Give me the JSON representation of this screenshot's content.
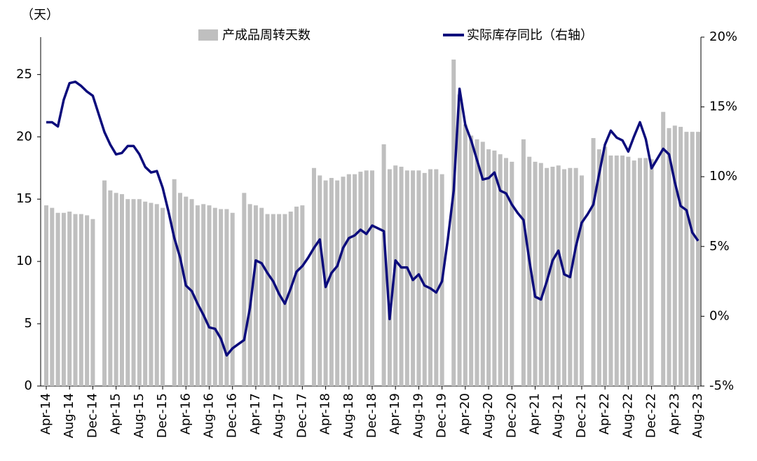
{
  "chart_data": {
    "type": "bar-line",
    "y_axis_label": "（天）",
    "categories": [
      "Apr-14",
      null,
      null,
      null,
      "Aug-14",
      null,
      null,
      null,
      "Dec-14",
      null,
      null,
      null,
      "Apr-15",
      null,
      null,
      null,
      "Aug-15",
      null,
      null,
      null,
      "Dec-15",
      null,
      null,
      null,
      "Apr-16",
      null,
      null,
      null,
      "Aug-16",
      null,
      null,
      null,
      "Dec-16",
      null,
      null,
      null,
      "Apr-17",
      null,
      null,
      null,
      "Aug-17",
      null,
      null,
      null,
      "Dec-17",
      null,
      null,
      null,
      "Apr-18",
      null,
      null,
      null,
      "Aug-18",
      null,
      null,
      null,
      "Dec-18",
      null,
      null,
      null,
      "Apr-19",
      null,
      null,
      null,
      "Aug-19",
      null,
      null,
      null,
      "Dec-19",
      null,
      null,
      null,
      "Apr-20",
      null,
      null,
      null,
      "Aug-20",
      null,
      null,
      null,
      "Dec-20",
      null,
      null,
      null,
      "Apr-21",
      null,
      null,
      null,
      "Aug-21",
      null,
      null,
      null,
      "Dec-21",
      null,
      null,
      null,
      "Apr-22",
      null,
      null,
      null,
      "Aug-22",
      null,
      null,
      null,
      "Dec-22",
      null,
      null,
      null,
      "Apr-23",
      null,
      null,
      null,
      "Aug-23"
    ],
    "series": [
      {
        "name": "产成品周转天数",
        "type": "bar",
        "color": "#bfbfbf",
        "values": [
          14.5,
          14.3,
          13.9,
          13.9,
          14.0,
          13.8,
          13.8,
          13.7,
          13.4,
          null,
          16.5,
          15.7,
          15.5,
          15.4,
          15.0,
          15.0,
          15.0,
          14.8,
          14.7,
          14.6,
          14.3,
          null,
          16.6,
          15.5,
          15.2,
          15.0,
          14.5,
          14.6,
          14.5,
          14.3,
          14.2,
          14.2,
          13.9,
          null,
          15.5,
          14.6,
          14.5,
          14.3,
          13.8,
          13.8,
          13.8,
          13.8,
          14.0,
          14.4,
          14.5,
          null,
          17.5,
          16.9,
          16.5,
          16.7,
          16.5,
          16.8,
          17.0,
          17.0,
          17.2,
          17.3,
          17.3,
          null,
          19.4,
          17.4,
          17.7,
          17.6,
          17.3,
          17.3,
          17.3,
          17.1,
          17.4,
          17.4,
          17.0,
          null,
          26.2,
          23.4,
          21.0,
          20.1,
          19.8,
          19.6,
          19.0,
          18.9,
          18.6,
          18.3,
          18.0,
          null,
          19.8,
          18.4,
          18.0,
          17.9,
          17.5,
          17.6,
          17.7,
          17.4,
          17.5,
          17.5,
          16.9,
          null,
          19.9,
          19.0,
          19.2,
          18.5,
          18.5,
          18.5,
          18.4,
          18.1,
          18.3,
          18.3,
          18.2,
          null,
          22.0,
          20.7,
          20.9,
          20.8,
          20.4,
          20.4,
          20.4
        ]
      },
      {
        "name": "实际库存同比（右轴）",
        "type": "line",
        "axis": "y2",
        "color": "#0c0c7c",
        "values": [
          13.9,
          13.9,
          13.6,
          15.5,
          16.7,
          16.8,
          16.5,
          16.1,
          15.8,
          14.5,
          13.2,
          12.3,
          11.6,
          11.7,
          12.2,
          12.2,
          11.6,
          10.7,
          10.3,
          10.4,
          9.2,
          7.5,
          5.6,
          4.2,
          2.2,
          1.8,
          0.9,
          0.1,
          -0.8,
          -0.9,
          -1.6,
          -2.8,
          -2.3,
          -2.0,
          -1.7,
          0.6,
          4.0,
          3.8,
          3.1,
          2.5,
          1.6,
          0.9,
          2.0,
          3.2,
          3.6,
          4.2,
          4.9,
          5.5,
          2.1,
          3.1,
          3.6,
          4.9,
          5.6,
          5.8,
          6.2,
          5.9,
          6.5,
          6.3,
          6.1,
          -0.2,
          4.0,
          3.5,
          3.5,
          2.6,
          3.0,
          2.2,
          2.0,
          1.7,
          2.5,
          5.5,
          9.0,
          16.3,
          13.7,
          12.6,
          11.2,
          9.8,
          9.9,
          10.3,
          9.0,
          8.8,
          8.0,
          7.4,
          6.9,
          4.0,
          1.4,
          1.2,
          2.5,
          4.0,
          4.7,
          3.0,
          2.8,
          5.0,
          6.7,
          7.3,
          8.0,
          10.2,
          12.3,
          13.3,
          12.8,
          12.6,
          11.8,
          12.9,
          13.9,
          12.7,
          10.6,
          11.3,
          12.0,
          11.6,
          9.6,
          7.9,
          7.6,
          6.0,
          5.4
        ]
      }
    ],
    "ylim": [
      0,
      28
    ],
    "yticks": [
      0,
      5,
      10,
      15,
      20,
      25
    ],
    "y2lim": [
      -5,
      20
    ],
    "y2ticks": [
      {
        "value": -5,
        "label": "-5%"
      },
      {
        "value": 0,
        "label": "0%"
      },
      {
        "value": 5,
        "label": "5%"
      },
      {
        "value": 10,
        "label": "10%"
      },
      {
        "value": 15,
        "label": "15%"
      },
      {
        "value": 20,
        "label": "20%"
      }
    ]
  }
}
